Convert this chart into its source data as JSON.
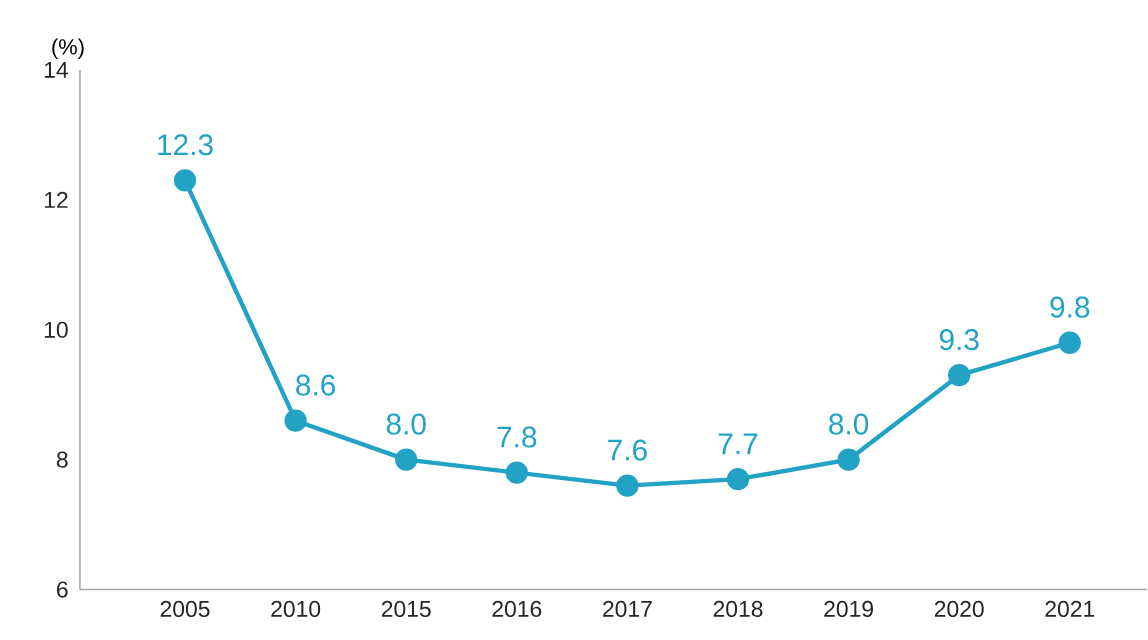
{
  "chart_data": {
    "type": "line",
    "ylabel": "(%)",
    "categories": [
      "2005",
      "2010",
      "2015",
      "2016",
      "2017",
      "2018",
      "2019",
      "2020",
      "2021"
    ],
    "values": [
      12.3,
      8.6,
      8.0,
      7.8,
      7.6,
      7.7,
      8.0,
      9.3,
      9.8
    ],
    "value_labels": [
      "12.3",
      "8.6",
      "8.0",
      "7.8",
      "7.6",
      "7.7",
      "8.0",
      "9.3",
      "9.8"
    ],
    "color": "#22a2c4",
    "ylim": [
      6,
      14
    ],
    "yticks": [
      6,
      8,
      10,
      12,
      14
    ],
    "grid": false,
    "marker": "circle",
    "line_style": "solid"
  }
}
